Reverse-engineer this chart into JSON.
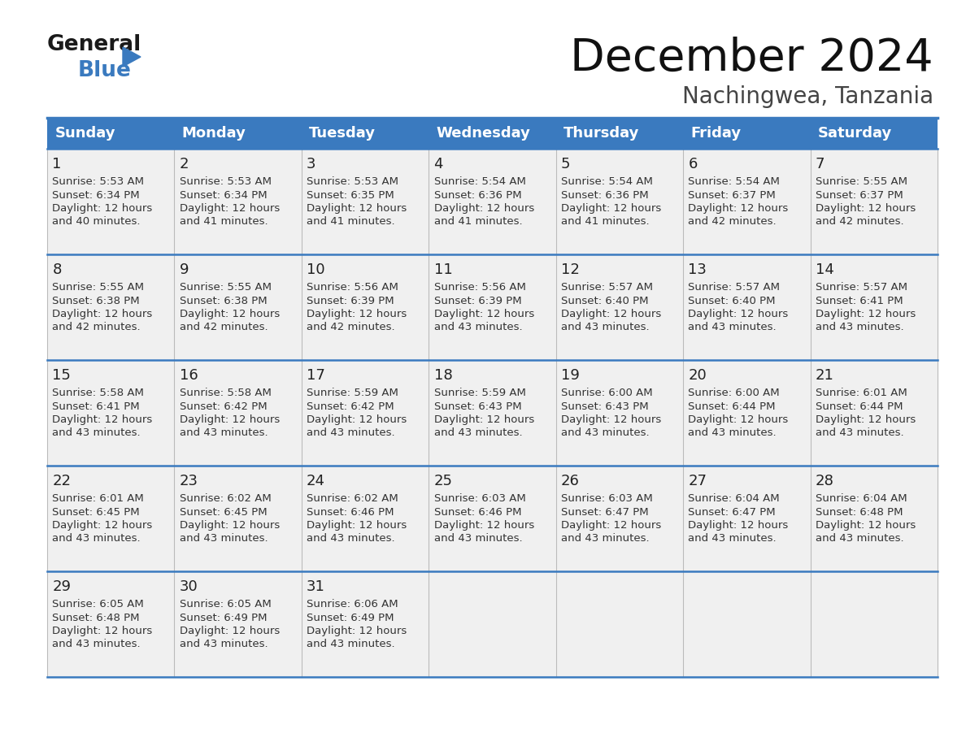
{
  "title": "December 2024",
  "subtitle": "Nachingwea, Tanzania",
  "header_color": "#3a7abf",
  "header_text_color": "#ffffff",
  "days_of_week": [
    "Sunday",
    "Monday",
    "Tuesday",
    "Wednesday",
    "Thursday",
    "Friday",
    "Saturday"
  ],
  "cell_bg_color": "#f0f0f0",
  "border_color": "#3a7abf",
  "day_number_color": "#222222",
  "cell_text_color": "#333333",
  "calendar": [
    [
      {
        "day": 1,
        "sunrise": "5:53 AM",
        "sunset": "6:34 PM",
        "daylight_line1": "Daylight: 12 hours",
        "daylight_line2": "and 40 minutes."
      },
      {
        "day": 2,
        "sunrise": "5:53 AM",
        "sunset": "6:34 PM",
        "daylight_line1": "Daylight: 12 hours",
        "daylight_line2": "and 41 minutes."
      },
      {
        "day": 3,
        "sunrise": "5:53 AM",
        "sunset": "6:35 PM",
        "daylight_line1": "Daylight: 12 hours",
        "daylight_line2": "and 41 minutes."
      },
      {
        "day": 4,
        "sunrise": "5:54 AM",
        "sunset": "6:36 PM",
        "daylight_line1": "Daylight: 12 hours",
        "daylight_line2": "and 41 minutes."
      },
      {
        "day": 5,
        "sunrise": "5:54 AM",
        "sunset": "6:36 PM",
        "daylight_line1": "Daylight: 12 hours",
        "daylight_line2": "and 41 minutes."
      },
      {
        "day": 6,
        "sunrise": "5:54 AM",
        "sunset": "6:37 PM",
        "daylight_line1": "Daylight: 12 hours",
        "daylight_line2": "and 42 minutes."
      },
      {
        "day": 7,
        "sunrise": "5:55 AM",
        "sunset": "6:37 PM",
        "daylight_line1": "Daylight: 12 hours",
        "daylight_line2": "and 42 minutes."
      }
    ],
    [
      {
        "day": 8,
        "sunrise": "5:55 AM",
        "sunset": "6:38 PM",
        "daylight_line1": "Daylight: 12 hours",
        "daylight_line2": "and 42 minutes."
      },
      {
        "day": 9,
        "sunrise": "5:55 AM",
        "sunset": "6:38 PM",
        "daylight_line1": "Daylight: 12 hours",
        "daylight_line2": "and 42 minutes."
      },
      {
        "day": 10,
        "sunrise": "5:56 AM",
        "sunset": "6:39 PM",
        "daylight_line1": "Daylight: 12 hours",
        "daylight_line2": "and 42 minutes."
      },
      {
        "day": 11,
        "sunrise": "5:56 AM",
        "sunset": "6:39 PM",
        "daylight_line1": "Daylight: 12 hours",
        "daylight_line2": "and 43 minutes."
      },
      {
        "day": 12,
        "sunrise": "5:57 AM",
        "sunset": "6:40 PM",
        "daylight_line1": "Daylight: 12 hours",
        "daylight_line2": "and 43 minutes."
      },
      {
        "day": 13,
        "sunrise": "5:57 AM",
        "sunset": "6:40 PM",
        "daylight_line1": "Daylight: 12 hours",
        "daylight_line2": "and 43 minutes."
      },
      {
        "day": 14,
        "sunrise": "5:57 AM",
        "sunset": "6:41 PM",
        "daylight_line1": "Daylight: 12 hours",
        "daylight_line2": "and 43 minutes."
      }
    ],
    [
      {
        "day": 15,
        "sunrise": "5:58 AM",
        "sunset": "6:41 PM",
        "daylight_line1": "Daylight: 12 hours",
        "daylight_line2": "and 43 minutes."
      },
      {
        "day": 16,
        "sunrise": "5:58 AM",
        "sunset": "6:42 PM",
        "daylight_line1": "Daylight: 12 hours",
        "daylight_line2": "and 43 minutes."
      },
      {
        "day": 17,
        "sunrise": "5:59 AM",
        "sunset": "6:42 PM",
        "daylight_line1": "Daylight: 12 hours",
        "daylight_line2": "and 43 minutes."
      },
      {
        "day": 18,
        "sunrise": "5:59 AM",
        "sunset": "6:43 PM",
        "daylight_line1": "Daylight: 12 hours",
        "daylight_line2": "and 43 minutes."
      },
      {
        "day": 19,
        "sunrise": "6:00 AM",
        "sunset": "6:43 PM",
        "daylight_line1": "Daylight: 12 hours",
        "daylight_line2": "and 43 minutes."
      },
      {
        "day": 20,
        "sunrise": "6:00 AM",
        "sunset": "6:44 PM",
        "daylight_line1": "Daylight: 12 hours",
        "daylight_line2": "and 43 minutes."
      },
      {
        "day": 21,
        "sunrise": "6:01 AM",
        "sunset": "6:44 PM",
        "daylight_line1": "Daylight: 12 hours",
        "daylight_line2": "and 43 minutes."
      }
    ],
    [
      {
        "day": 22,
        "sunrise": "6:01 AM",
        "sunset": "6:45 PM",
        "daylight_line1": "Daylight: 12 hours",
        "daylight_line2": "and 43 minutes."
      },
      {
        "day": 23,
        "sunrise": "6:02 AM",
        "sunset": "6:45 PM",
        "daylight_line1": "Daylight: 12 hours",
        "daylight_line2": "and 43 minutes."
      },
      {
        "day": 24,
        "sunrise": "6:02 AM",
        "sunset": "6:46 PM",
        "daylight_line1": "Daylight: 12 hours",
        "daylight_line2": "and 43 minutes."
      },
      {
        "day": 25,
        "sunrise": "6:03 AM",
        "sunset": "6:46 PM",
        "daylight_line1": "Daylight: 12 hours",
        "daylight_line2": "and 43 minutes."
      },
      {
        "day": 26,
        "sunrise": "6:03 AM",
        "sunset": "6:47 PM",
        "daylight_line1": "Daylight: 12 hours",
        "daylight_line2": "and 43 minutes."
      },
      {
        "day": 27,
        "sunrise": "6:04 AM",
        "sunset": "6:47 PM",
        "daylight_line1": "Daylight: 12 hours",
        "daylight_line2": "and 43 minutes."
      },
      {
        "day": 28,
        "sunrise": "6:04 AM",
        "sunset": "6:48 PM",
        "daylight_line1": "Daylight: 12 hours",
        "daylight_line2": "and 43 minutes."
      }
    ],
    [
      {
        "day": 29,
        "sunrise": "6:05 AM",
        "sunset": "6:48 PM",
        "daylight_line1": "Daylight: 12 hours",
        "daylight_line2": "and 43 minutes."
      },
      {
        "day": 30,
        "sunrise": "6:05 AM",
        "sunset": "6:49 PM",
        "daylight_line1": "Daylight: 12 hours",
        "daylight_line2": "and 43 minutes."
      },
      {
        "day": 31,
        "sunrise": "6:06 AM",
        "sunset": "6:49 PM",
        "daylight_line1": "Daylight: 12 hours",
        "daylight_line2": "and 43 minutes."
      },
      null,
      null,
      null,
      null
    ]
  ],
  "logo_text_general": "General",
  "logo_text_blue": "Blue",
  "logo_color_general": "#1a1a1a",
  "logo_color_blue": "#3a7abf",
  "logo_triangle_color": "#3a7abf",
  "fig_width": 11.88,
  "fig_height": 9.18,
  "dpi": 100
}
